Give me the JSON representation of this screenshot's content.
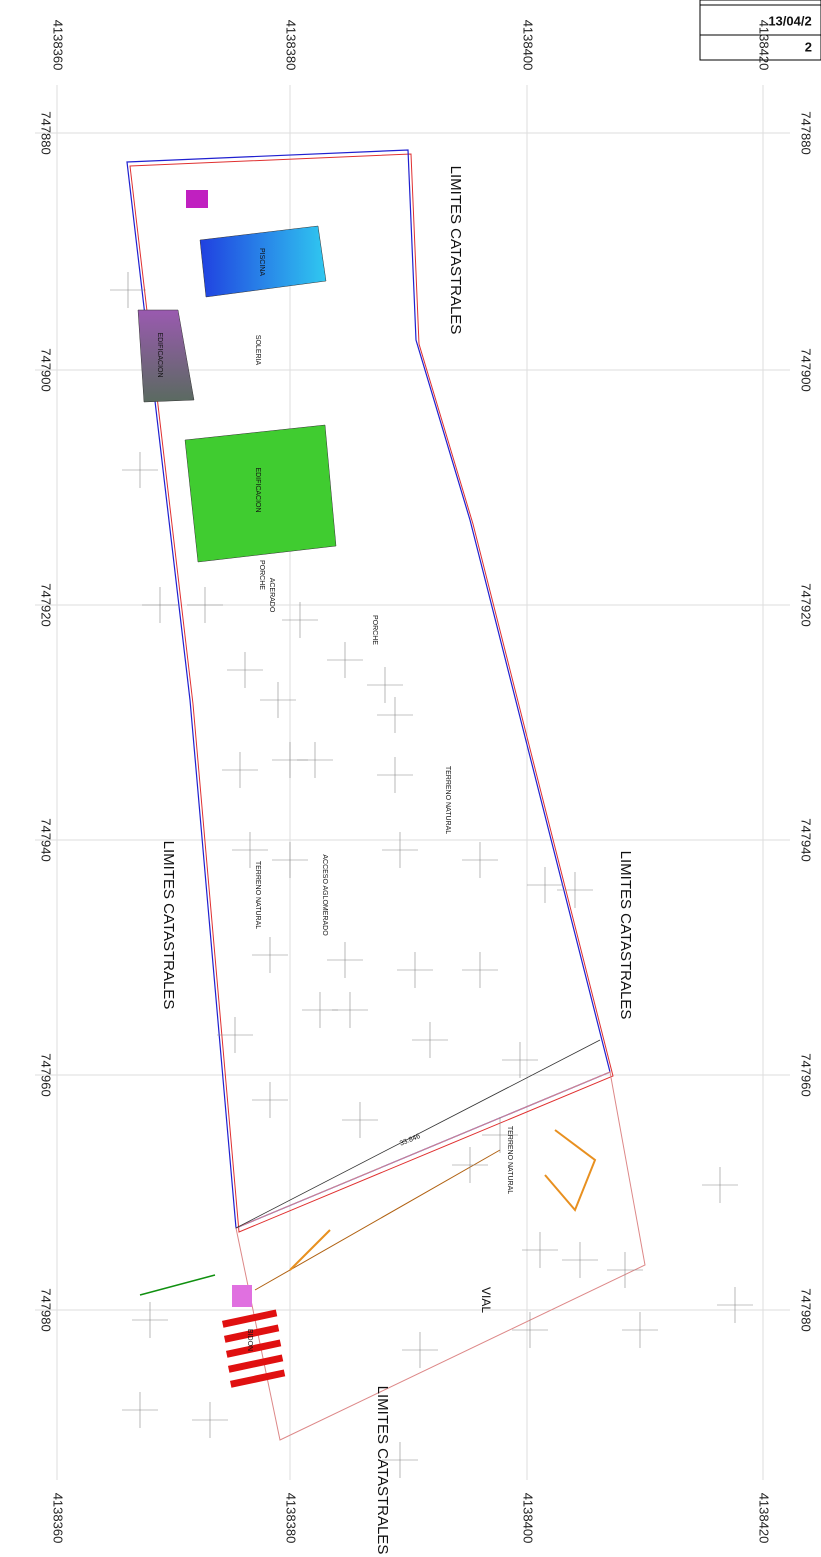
{
  "header": {
    "date": "13/04/2",
    "sheet": "2"
  },
  "grid": {
    "top": [
      4138360,
      4138380,
      4138400,
      4138420
    ],
    "bottom": [
      4138360,
      4138380,
      4138400,
      4138420
    ],
    "left": [
      747880,
      747900,
      747920,
      747940,
      747960,
      747980
    ],
    "right": [
      747880,
      747900,
      747920,
      747940,
      747960,
      747980
    ]
  },
  "labels": {
    "limites": [
      "LIMITES CATASTRALES",
      "LIMITES CATASTRALES",
      "LIMITES CATASTRALES",
      "LIMITES CATASTRALES"
    ],
    "piscina": "PISCINA",
    "soleria": "SOLERIA",
    "edificacion": [
      "EDIFICACION",
      "EDIFICACION"
    ],
    "porche": [
      "PORCHE",
      "PORCHE"
    ],
    "acerado": "ACERADO",
    "terreno": [
      "TERRENO NATURAL",
      "TERRENO NATURAL",
      "TERRENO NATURAL"
    ],
    "acceso": "ACCESO AGLOMERADO",
    "vial": "VIAL",
    "bidon": "BIDON",
    "distance": "33.846"
  }
}
